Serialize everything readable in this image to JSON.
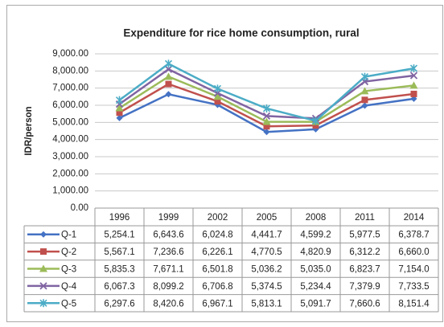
{
  "chart_data": {
    "type": "line",
    "title": "Expenditure for rice home consumption, rural",
    "y_label": "IDR/person",
    "categories": [
      "1996",
      "1999",
      "2002",
      "2005",
      "2008",
      "2011",
      "2014"
    ],
    "ylim": [
      0,
      9000
    ],
    "yticks": [
      {
        "value": 0,
        "label": "0.00"
      },
      {
        "value": 1000,
        "label": "1,000.00"
      },
      {
        "value": 2000,
        "label": "2,000.00"
      },
      {
        "value": 3000,
        "label": "3,000.00"
      },
      {
        "value": 4000,
        "label": "4,000.00"
      },
      {
        "value": 5000,
        "label": "5,000.00"
      },
      {
        "value": 6000,
        "label": "6,000.00"
      },
      {
        "value": 7000,
        "label": "7,000.00"
      },
      {
        "value": 8000,
        "label": "8,000.00"
      },
      {
        "value": 9000,
        "label": "9,000.00"
      }
    ],
    "grid": true,
    "series": [
      {
        "name": "Q-1",
        "color": "#4472c4",
        "marker": "diamond",
        "values": [
          5254.1,
          6643.6,
          6024.8,
          4441.7,
          4599.2,
          5977.5,
          6378.7
        ],
        "value_labels": [
          "5,254.1",
          "6,643.6",
          "6,024.8",
          "4,441.7",
          "4,599.2",
          "5,977.5",
          "6,378.7"
        ]
      },
      {
        "name": "Q-2",
        "color": "#c0504d",
        "marker": "square",
        "values": [
          5567.1,
          7236.6,
          6226.1,
          4770.5,
          4820.9,
          6312.2,
          6660.0
        ],
        "value_labels": [
          "5,567.1",
          "7,236.6",
          "6,226.1",
          "4,770.5",
          "4,820.9",
          "6,312.2",
          "6,660.0"
        ]
      },
      {
        "name": "Q-3",
        "color": "#9bbb59",
        "marker": "triangle",
        "values": [
          5835.3,
          7671.1,
          6501.8,
          5036.2,
          5035.0,
          6823.7,
          7154.0
        ],
        "value_labels": [
          "5,835.3",
          "7,671.1",
          "6,501.8",
          "5,036.2",
          "5,035.0",
          "6,823.7",
          "7,154.0"
        ]
      },
      {
        "name": "Q-4",
        "color": "#8064a2",
        "marker": "x",
        "values": [
          6067.3,
          8099.2,
          6706.8,
          5374.5,
          5234.4,
          7379.9,
          7733.5
        ],
        "value_labels": [
          "6,067.3",
          "8,099.2",
          "6,706.8",
          "5,374.5",
          "5,234.4",
          "7,379.9",
          "7,733.5"
        ]
      },
      {
        "name": "Q-5",
        "color": "#4bacc6",
        "marker": "star",
        "values": [
          6297.6,
          8420.6,
          6967.1,
          5813.1,
          5091.7,
          7660.6,
          8151.4
        ],
        "value_labels": [
          "6,297.6",
          "8,420.6",
          "6,967.1",
          "5,813.1",
          "5,091.7",
          "7,660.6",
          "8,151.4"
        ]
      }
    ]
  }
}
